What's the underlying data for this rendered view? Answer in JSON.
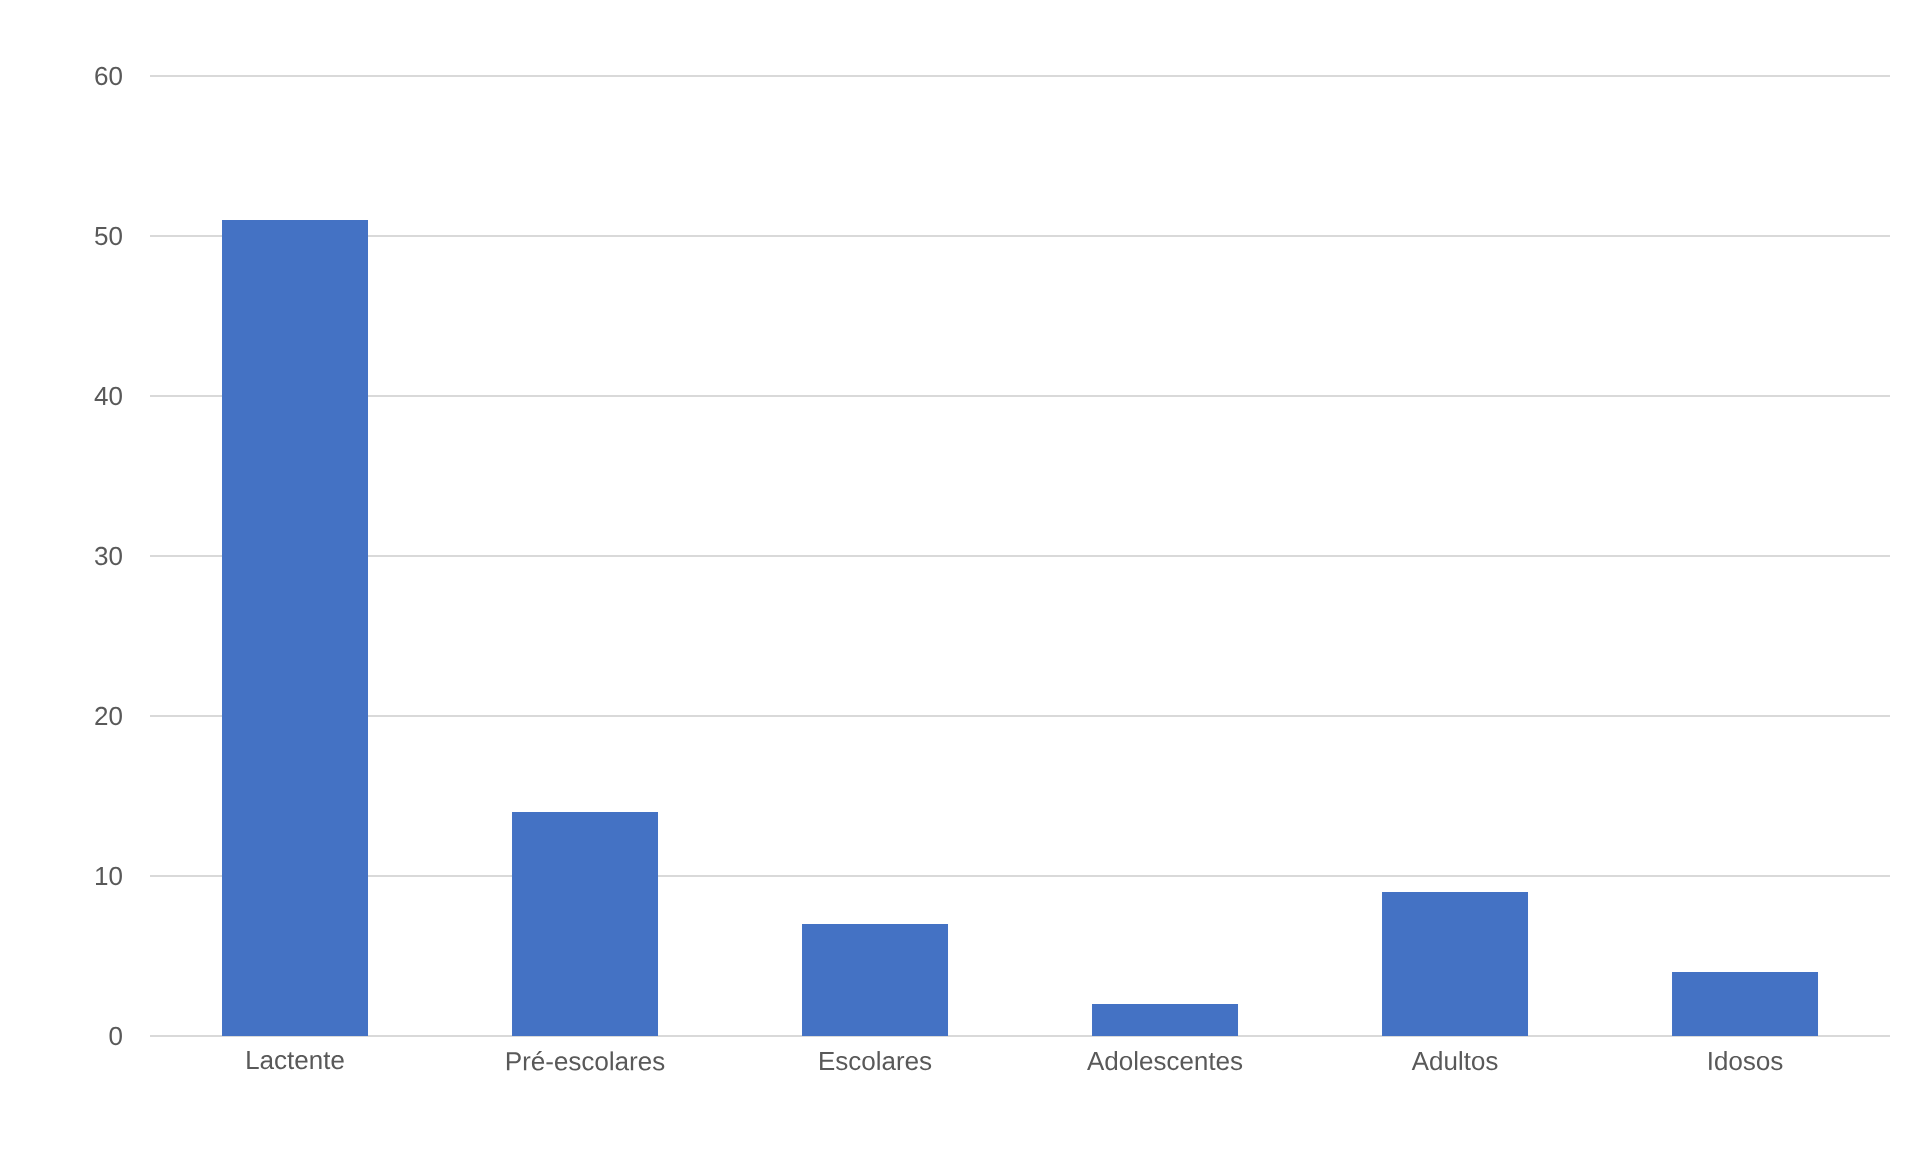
{
  "chart_data": {
    "type": "bar",
    "categories": [
      "Lactente",
      "Pré-escolares",
      "Escolares",
      "Adolescentes",
      "Adultos",
      "Idosos"
    ],
    "values": [
      51,
      14,
      7,
      2,
      9,
      4
    ],
    "color": "#4472c4",
    "ylim": [
      0,
      60
    ],
    "yticks": [
      0,
      10,
      20,
      30,
      40,
      50,
      60
    ],
    "grid": "y"
  }
}
